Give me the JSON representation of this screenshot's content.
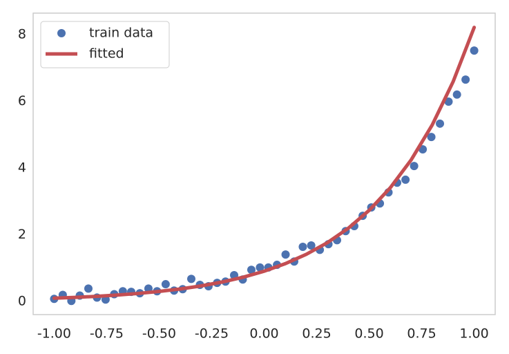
{
  "chart_data": {
    "type": "scatter",
    "series": [
      {
        "name": "train data",
        "type": "scatter",
        "color": "#4c72b0",
        "x": [
          -1.0,
          -0.959,
          -0.918,
          -0.878,
          -0.837,
          -0.796,
          -0.755,
          -0.714,
          -0.673,
          -0.633,
          -0.592,
          -0.551,
          -0.51,
          -0.469,
          -0.429,
          -0.388,
          -0.347,
          -0.306,
          -0.265,
          -0.224,
          -0.184,
          -0.143,
          -0.102,
          -0.061,
          -0.02,
          0.02,
          0.061,
          0.102,
          0.143,
          0.184,
          0.224,
          0.265,
          0.306,
          0.347,
          0.388,
          0.429,
          0.469,
          0.51,
          0.551,
          0.592,
          0.633,
          0.673,
          0.714,
          0.755,
          0.796,
          0.837,
          0.878,
          0.918,
          0.959,
          1.0
        ],
        "values": [
          0.08,
          0.2,
          0.02,
          0.18,
          0.39,
          0.12,
          0.06,
          0.22,
          0.31,
          0.29,
          0.25,
          0.39,
          0.31,
          0.52,
          0.33,
          0.37,
          0.68,
          0.5,
          0.46,
          0.56,
          0.6,
          0.79,
          0.66,
          0.95,
          1.02,
          1.02,
          1.1,
          1.41,
          1.2,
          1.64,
          1.68,
          1.55,
          1.72,
          1.84,
          2.11,
          2.26,
          2.57,
          2.82,
          2.94,
          3.27,
          3.56,
          3.65,
          4.06,
          4.56,
          4.93,
          5.33,
          5.99,
          6.2,
          6.65,
          7.52
        ]
      },
      {
        "name": "fitted",
        "type": "line",
        "color": "#c44e52",
        "x": [
          -1.0,
          -0.9,
          -0.8,
          -0.7,
          -0.6,
          -0.5,
          -0.4,
          -0.3,
          -0.2,
          -0.1,
          0.0,
          0.1,
          0.2,
          0.3,
          0.4,
          0.5,
          0.6,
          0.7,
          0.8,
          0.9,
          1.0
        ],
        "values": [
          0.101,
          0.126,
          0.157,
          0.195,
          0.243,
          0.303,
          0.377,
          0.47,
          0.586,
          0.73,
          0.91,
          1.134,
          1.413,
          1.761,
          2.194,
          2.734,
          3.406,
          4.245,
          5.289,
          6.591,
          8.213
        ]
      }
    ],
    "xlim": [
      -1.1,
      1.1
    ],
    "ylim": [
      -0.39,
      8.64
    ],
    "xticks": [
      {
        "value": -1.0,
        "label": "-1.00"
      },
      {
        "value": -0.75,
        "label": "-0.75"
      },
      {
        "value": -0.5,
        "label": "-0.50"
      },
      {
        "value": -0.25,
        "label": "-0.25"
      },
      {
        "value": 0.0,
        "label": "0.00"
      },
      {
        "value": 0.25,
        "label": "0.25"
      },
      {
        "value": 0.5,
        "label": "0.50"
      },
      {
        "value": 0.75,
        "label": "0.75"
      },
      {
        "value": 1.0,
        "label": "1.00"
      }
    ],
    "yticks": [
      0,
      2,
      4,
      6,
      8
    ],
    "grid": false,
    "legend": "upper left"
  }
}
